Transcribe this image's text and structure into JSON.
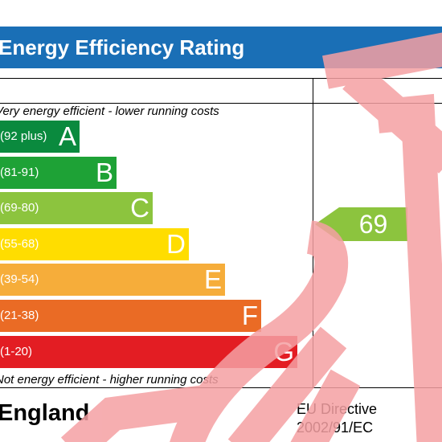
{
  "title": "Energy Efficiency Rating",
  "caption_top": "Very energy efficient - lower running costs",
  "caption_bottom": "Not energy efficient - higher running costs",
  "bands": [
    {
      "letter": "A",
      "range": "(92 plus)",
      "color": "#0a8a3e"
    },
    {
      "letter": "B",
      "range": "(81-91)",
      "color": "#1ea236"
    },
    {
      "letter": "C",
      "range": "(69-80)",
      "color": "#8cc43e"
    },
    {
      "letter": "D",
      "range": "(55-68)",
      "color": "#ffdd00"
    },
    {
      "letter": "E",
      "range": "(39-54)",
      "color": "#f6ad3a"
    },
    {
      "letter": "F",
      "range": "(21-38)",
      "color": "#ea6b25"
    },
    {
      "letter": "G",
      "range": "(1-20)",
      "color": "#e31d23"
    }
  ],
  "current_rating": {
    "value": "69",
    "band": "C",
    "color": "#8cc43e"
  },
  "country": "England",
  "directive": {
    "line1": "EU Directive",
    "line2": "2002/91/EC"
  },
  "watermark_color": "#f5a0a3"
}
